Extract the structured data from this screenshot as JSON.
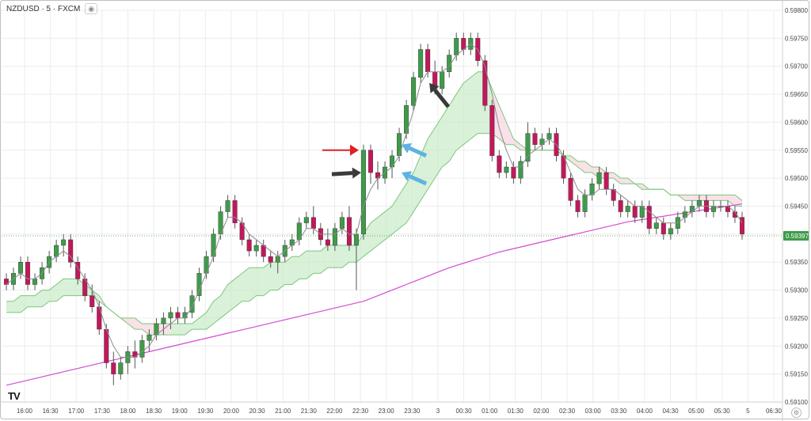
{
  "header": {
    "symbol_title": "NZDUSD · 5 · FXCM",
    "eye_icon": "eye-icon"
  },
  "brand": {
    "logo_text": "TV"
  },
  "colors": {
    "up": "#3f9b4a",
    "down": "#c2185b",
    "grid": "#ececec",
    "ma_fast": "#8c8c8c",
    "cloud_edge": "#7cc77c",
    "cloud_bull": "#c8ebc8",
    "cloud_bear": "#f7d4e0",
    "ma_slow": "#d44bd4",
    "price_tag": "#3f9b4a",
    "arrow_red": "#e31e24",
    "arrow_dark": "#3a3a3a",
    "arrow_blue": "#5db3e0"
  },
  "chart_data": {
    "type": "candlestick",
    "title": "NZDUSD · 5 · FXCM",
    "symbol": "NZDUSD",
    "interval": "5",
    "source": "FXCM",
    "last_price": "0.59397",
    "ylim": [
      0.591,
      0.598
    ],
    "y_ticks": [
      "0.59800",
      "0.59750",
      "0.59700",
      "0.59650",
      "0.59600",
      "0.59550",
      "0.59500",
      "0.59450",
      "0.59400",
      "0.59350",
      "0.59300",
      "0.59250",
      "0.59200",
      "0.59150",
      "0.59100"
    ],
    "x_tick_labels": [
      "16:00",
      "16:30",
      "17:00",
      "17:30",
      "18:00",
      "18:30",
      "19:00",
      "19:30",
      "20:00",
      "20:30",
      "21:00",
      "21:30",
      "22:00",
      "22:30",
      "23:00",
      "23:30",
      "3",
      "00:30",
      "01:00",
      "01:30",
      "02:00",
      "02:30",
      "03:00",
      "03:30",
      "04:00",
      "04:30",
      "05:00",
      "05:30",
      "5",
      "06:30"
    ],
    "grid": true,
    "candles": [
      [
        0.5932,
        0.5933,
        0.593,
        0.5931
      ],
      [
        0.5931,
        0.5934,
        0.593,
        0.5933
      ],
      [
        0.5933,
        0.5936,
        0.5932,
        0.5935
      ],
      [
        0.5935,
        0.5936,
        0.593,
        0.5931
      ],
      [
        0.5931,
        0.5933,
        0.593,
        0.5932
      ],
      [
        0.5932,
        0.5935,
        0.5931,
        0.5934
      ],
      [
        0.5934,
        0.5937,
        0.5933,
        0.5936
      ],
      [
        0.5936,
        0.5939,
        0.5935,
        0.5938
      ],
      [
        0.5938,
        0.594,
        0.5936,
        0.5939
      ],
      [
        0.5939,
        0.594,
        0.5934,
        0.5935
      ],
      [
        0.5935,
        0.5936,
        0.5931,
        0.5932
      ],
      [
        0.5932,
        0.5933,
        0.5928,
        0.5929
      ],
      [
        0.5929,
        0.5931,
        0.5926,
        0.5927
      ],
      [
        0.5927,
        0.5928,
        0.5922,
        0.5923
      ],
      [
        0.5923,
        0.5924,
        0.5916,
        0.5917
      ],
      [
        0.5917,
        0.5919,
        0.5913,
        0.5915
      ],
      [
        0.5915,
        0.5918,
        0.5914,
        0.5917
      ],
      [
        0.5917,
        0.592,
        0.5915,
        0.5919
      ],
      [
        0.5919,
        0.5921,
        0.5916,
        0.5918
      ],
      [
        0.5918,
        0.5922,
        0.5917,
        0.5921
      ],
      [
        0.5921,
        0.5923,
        0.5919,
        0.5922
      ],
      [
        0.5922,
        0.5925,
        0.5921,
        0.5924
      ],
      [
        0.5924,
        0.5926,
        0.5922,
        0.5925
      ],
      [
        0.5925,
        0.5927,
        0.5923,
        0.5926
      ],
      [
        0.5926,
        0.5927,
        0.5924,
        0.5925
      ],
      [
        0.5925,
        0.5927,
        0.5924,
        0.5926
      ],
      [
        0.5926,
        0.593,
        0.5925,
        0.5929
      ],
      [
        0.5929,
        0.5934,
        0.5928,
        0.5933
      ],
      [
        0.5933,
        0.5937,
        0.5932,
        0.5936
      ],
      [
        0.5936,
        0.5941,
        0.5935,
        0.594
      ],
      [
        0.594,
        0.5945,
        0.5939,
        0.5944
      ],
      [
        0.5944,
        0.5947,
        0.5943,
        0.5946
      ],
      [
        0.5946,
        0.5947,
        0.5941,
        0.5942
      ],
      [
        0.5942,
        0.5943,
        0.5938,
        0.5939
      ],
      [
        0.5939,
        0.594,
        0.5936,
        0.5937
      ],
      [
        0.5937,
        0.5939,
        0.5936,
        0.5938
      ],
      [
        0.5938,
        0.5939,
        0.5935,
        0.5936
      ],
      [
        0.5936,
        0.5937,
        0.5934,
        0.5935
      ],
      [
        0.5935,
        0.5937,
        0.5933,
        0.5936
      ],
      [
        0.5936,
        0.5939,
        0.5935,
        0.5938
      ],
      [
        0.5938,
        0.594,
        0.5937,
        0.5939
      ],
      [
        0.5939,
        0.5943,
        0.5938,
        0.5942
      ],
      [
        0.5942,
        0.5944,
        0.5941,
        0.5943
      ],
      [
        0.5943,
        0.5945,
        0.594,
        0.5941
      ],
      [
        0.5941,
        0.5942,
        0.5938,
        0.5939
      ],
      [
        0.5939,
        0.5941,
        0.5937,
        0.5938
      ],
      [
        0.5938,
        0.5942,
        0.5937,
        0.5941
      ],
      [
        0.5941,
        0.5944,
        0.594,
        0.5943
      ],
      [
        0.5943,
        0.5945,
        0.5937,
        0.5938
      ],
      [
        0.5938,
        0.5941,
        0.593,
        0.594
      ],
      [
        0.594,
        0.5956,
        0.5939,
        0.5955
      ],
      [
        0.5955,
        0.5956,
        0.5949,
        0.5951
      ],
      [
        0.5951,
        0.5953,
        0.5948,
        0.595
      ],
      [
        0.595,
        0.5953,
        0.5949,
        0.5952
      ],
      [
        0.5952,
        0.5955,
        0.595,
        0.5954
      ],
      [
        0.5954,
        0.5959,
        0.5953,
        0.5958
      ],
      [
        0.5958,
        0.5964,
        0.5957,
        0.5963
      ],
      [
        0.5963,
        0.5969,
        0.5962,
        0.5968
      ],
      [
        0.5968,
        0.5974,
        0.5967,
        0.5973
      ],
      [
        0.5973,
        0.5974,
        0.5968,
        0.5969
      ],
      [
        0.5969,
        0.5971,
        0.5965,
        0.5966
      ],
      [
        0.5966,
        0.597,
        0.5965,
        0.5969
      ],
      [
        0.5969,
        0.5973,
        0.5968,
        0.5972
      ],
      [
        0.5972,
        0.5976,
        0.5971,
        0.5975
      ],
      [
        0.5975,
        0.5976,
        0.5972,
        0.5973
      ],
      [
        0.5973,
        0.5976,
        0.5972,
        0.5975
      ],
      [
        0.5975,
        0.5976,
        0.597,
        0.5971
      ],
      [
        0.5971,
        0.5972,
        0.5962,
        0.5963
      ],
      [
        0.5963,
        0.5964,
        0.5953,
        0.5954
      ],
      [
        0.5954,
        0.5955,
        0.595,
        0.5951
      ],
      [
        0.5951,
        0.5953,
        0.595,
        0.5952
      ],
      [
        0.5952,
        0.5953,
        0.5949,
        0.595
      ],
      [
        0.595,
        0.5954,
        0.5949,
        0.5953
      ],
      [
        0.5953,
        0.596,
        0.5952,
        0.5958
      ],
      [
        0.5958,
        0.5959,
        0.5955,
        0.5956
      ],
      [
        0.5956,
        0.5958,
        0.5955,
        0.5957
      ],
      [
        0.5957,
        0.5959,
        0.5956,
        0.5958
      ],
      [
        0.5958,
        0.5959,
        0.5953,
        0.5954
      ],
      [
        0.5954,
        0.5955,
        0.5949,
        0.595
      ],
      [
        0.595,
        0.5951,
        0.5945,
        0.5946
      ],
      [
        0.5946,
        0.5947,
        0.5943,
        0.5944
      ],
      [
        0.5944,
        0.5948,
        0.5943,
        0.5947
      ],
      [
        0.5947,
        0.595,
        0.5946,
        0.5949
      ],
      [
        0.5949,
        0.5952,
        0.5948,
        0.5951
      ],
      [
        0.5951,
        0.5952,
        0.5947,
        0.5948
      ],
      [
        0.5948,
        0.5949,
        0.5945,
        0.5946
      ],
      [
        0.5946,
        0.5947,
        0.5943,
        0.5944
      ],
      [
        0.5944,
        0.5946,
        0.5943,
        0.5945
      ],
      [
        0.5945,
        0.5946,
        0.5942,
        0.5943
      ],
      [
        0.5943,
        0.5946,
        0.5942,
        0.5945
      ],
      [
        0.5945,
        0.5946,
        0.594,
        0.5941
      ],
      [
        0.5941,
        0.5943,
        0.594,
        0.5942
      ],
      [
        0.5942,
        0.5943,
        0.5939,
        0.594
      ],
      [
        0.594,
        0.5942,
        0.5939,
        0.5941
      ],
      [
        0.5941,
        0.5944,
        0.594,
        0.5943
      ],
      [
        0.5943,
        0.5945,
        0.5942,
        0.5944
      ],
      [
        0.5944,
        0.5946,
        0.5943,
        0.5945
      ],
      [
        0.5945,
        0.5947,
        0.5944,
        0.5946
      ],
      [
        0.5946,
        0.5947,
        0.5943,
        0.5944
      ],
      [
        0.5944,
        0.5946,
        0.5943,
        0.5945
      ],
      [
        0.5945,
        0.5946,
        0.5944,
        0.5945
      ],
      [
        0.5945,
        0.5946,
        0.5943,
        0.5944
      ],
      [
        0.5944,
        0.5945,
        0.5942,
        0.5943
      ],
      [
        0.5943,
        0.5944,
        0.5939,
        0.594
      ]
    ],
    "ma_fast": [
      0.5931,
      0.5932,
      0.5933,
      0.5932,
      0.5932,
      0.5933,
      0.5935,
      0.5936,
      0.5937,
      0.5936,
      0.5934,
      0.5932,
      0.593,
      0.5927,
      0.5923,
      0.592,
      0.5918,
      0.5918,
      0.5918,
      0.5919,
      0.592,
      0.5922,
      0.5923,
      0.5924,
      0.5925,
      0.5925,
      0.5927,
      0.593,
      0.5933,
      0.5936,
      0.594,
      0.5943,
      0.5943,
      0.5942,
      0.594,
      0.5939,
      0.5938,
      0.5937,
      0.5936,
      0.5937,
      0.5938,
      0.5939,
      0.5941,
      0.5941,
      0.594,
      0.594,
      0.594,
      0.5941,
      0.594,
      0.594,
      0.5945,
      0.5948,
      0.595,
      0.5951,
      0.5952,
      0.5954,
      0.5958,
      0.5962,
      0.5967,
      0.5969,
      0.5969,
      0.5969,
      0.597,
      0.5972,
      0.5973,
      0.5974,
      0.5973,
      0.597,
      0.5965,
      0.5959,
      0.5955,
      0.5952,
      0.5952,
      0.5954,
      0.5955,
      0.5956,
      0.5957,
      0.5956,
      0.5954,
      0.5951,
      0.5948,
      0.5947,
      0.5947,
      0.5948,
      0.5948,
      0.5948,
      0.5947,
      0.5946,
      0.5945,
      0.5945,
      0.5944,
      0.5943,
      0.5942,
      0.5942,
      0.5942,
      0.5943,
      0.5944,
      0.5945,
      0.5945,
      0.5945,
      0.5945,
      0.5945,
      0.5944,
      0.5942
    ],
    "cloud_upper": [
      0.5928,
      0.5928,
      0.5929,
      0.5929,
      0.5929,
      0.593,
      0.593,
      0.5931,
      0.5932,
      0.5932,
      0.5932,
      0.5931,
      0.593,
      0.5929,
      0.5927,
      0.5926,
      0.5925,
      0.5925,
      0.5925,
      0.5924,
      0.5924,
      0.5924,
      0.5924,
      0.5924,
      0.5924,
      0.5924,
      0.5924,
      0.5925,
      0.5926,
      0.5928,
      0.5929,
      0.5931,
      0.5932,
      0.5933,
      0.5934,
      0.5934,
      0.5934,
      0.5935,
      0.5935,
      0.5935,
      0.5936,
      0.5936,
      0.5937,
      0.5937,
      0.5937,
      0.5938,
      0.5938,
      0.5938,
      0.5938,
      0.5938,
      0.594,
      0.5942,
      0.5943,
      0.5944,
      0.5945,
      0.5947,
      0.5949,
      0.5951,
      0.5954,
      0.5957,
      0.5959,
      0.5961,
      0.5963,
      0.5965,
      0.5967,
      0.5968,
      0.5969,
      0.5969,
      0.5966,
      0.5963,
      0.596,
      0.5957,
      0.5956,
      0.5955,
      0.5955,
      0.5955,
      0.5955,
      0.5955,
      0.5954,
      0.5953,
      0.5952,
      0.5951,
      0.5951,
      0.595,
      0.595,
      0.595,
      0.5949,
      0.5949,
      0.5949,
      0.5948,
      0.5948,
      0.5948,
      0.5948,
      0.5947,
      0.5947,
      0.5947,
      0.5947,
      0.5947,
      0.5947,
      0.5947,
      0.5947,
      0.5947,
      0.5947,
      0.5946
    ],
    "cloud_lower": [
      0.5926,
      0.5926,
      0.5926,
      0.5927,
      0.5927,
      0.5927,
      0.5928,
      0.5928,
      0.5929,
      0.5929,
      0.5929,
      0.5929,
      0.5929,
      0.5928,
      0.5927,
      0.5926,
      0.5925,
      0.5924,
      0.5923,
      0.5923,
      0.5922,
      0.5922,
      0.5922,
      0.5922,
      0.5922,
      0.5922,
      0.5923,
      0.5923,
      0.5923,
      0.5924,
      0.5925,
      0.5926,
      0.5927,
      0.5928,
      0.5928,
      0.5929,
      0.5929,
      0.593,
      0.593,
      0.5931,
      0.5931,
      0.5932,
      0.5932,
      0.5933,
      0.5933,
      0.5934,
      0.5934,
      0.5934,
      0.5935,
      0.5935,
      0.5936,
      0.5937,
      0.5938,
      0.5939,
      0.594,
      0.5941,
      0.5942,
      0.5944,
      0.5946,
      0.5948,
      0.595,
      0.5952,
      0.5953,
      0.5955,
      0.5956,
      0.5957,
      0.5958,
      0.5958,
      0.5958,
      0.5957,
      0.5956,
      0.5956,
      0.5955,
      0.5955,
      0.5955,
      0.5955,
      0.5955,
      0.5955,
      0.5954,
      0.5954,
      0.5953,
      0.5953,
      0.5952,
      0.5952,
      0.5951,
      0.5951,
      0.595,
      0.595,
      0.5949,
      0.5949,
      0.5948,
      0.5948,
      0.5948,
      0.5947,
      0.5947,
      0.5946,
      0.5946,
      0.5946,
      0.5946,
      0.5946,
      0.5946,
      0.5946,
      0.5945,
      0.5945
    ],
    "ma_slow": [
      0.5913,
      0.59133,
      0.59136,
      0.59139,
      0.59142,
      0.59145,
      0.59148,
      0.59151,
      0.59154,
      0.59157,
      0.5916,
      0.59163,
      0.59166,
      0.59169,
      0.59172,
      0.59175,
      0.59178,
      0.59181,
      0.59184,
      0.59187,
      0.5919,
      0.59193,
      0.59196,
      0.59199,
      0.59202,
      0.59205,
      0.59208,
      0.59211,
      0.59214,
      0.59217,
      0.5922,
      0.59223,
      0.59226,
      0.59229,
      0.59232,
      0.59235,
      0.59238,
      0.59241,
      0.59244,
      0.59247,
      0.5925,
      0.59253,
      0.59256,
      0.59259,
      0.59262,
      0.59265,
      0.59268,
      0.59271,
      0.59274,
      0.59277,
      0.5928,
      0.59285,
      0.5929,
      0.59295,
      0.593,
      0.59305,
      0.5931,
      0.59315,
      0.5932,
      0.59325,
      0.5933,
      0.59335,
      0.5934,
      0.59344,
      0.59348,
      0.59352,
      0.59356,
      0.5936,
      0.59364,
      0.59368,
      0.59371,
      0.59374,
      0.59377,
      0.5938,
      0.59383,
      0.59386,
      0.59389,
      0.59392,
      0.59395,
      0.59398,
      0.59401,
      0.59404,
      0.59407,
      0.5941,
      0.59413,
      0.59416,
      0.59419,
      0.59422,
      0.59424,
      0.59426,
      0.59428,
      0.5943,
      0.59432,
      0.59434,
      0.59436,
      0.59438,
      0.5944,
      0.59442,
      0.59444,
      0.59446,
      0.59448,
      0.5945,
      0.59452,
      0.59454
    ],
    "arrows": [
      {
        "id": "red",
        "at_candle": 50,
        "price": 0.5955
      },
      {
        "id": "dark1",
        "at_candle": 50,
        "price": 0.5951
      },
      {
        "id": "dark2",
        "at_candle": 59,
        "price": 0.5967
      },
      {
        "id": "blue1",
        "at_candle": 55,
        "price": 0.5956
      },
      {
        "id": "blue2",
        "at_candle": 55,
        "price": 0.5951
      }
    ]
  }
}
